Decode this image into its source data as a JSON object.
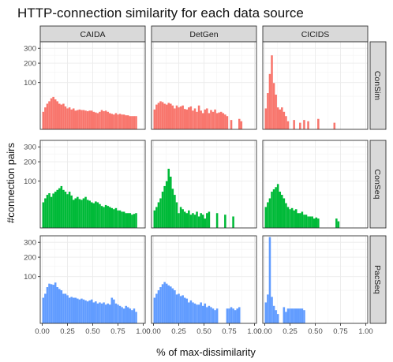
{
  "chart_data": {
    "type": "bar",
    "title": "HTTP-connection similarity for each data source",
    "xlabel": "% of max-dissimilarity",
    "ylabel": "#connection pairs",
    "xlim": [
      -0.02,
      1.02
    ],
    "x_ticks": [
      "0.00",
      "0.25",
      "0.50",
      "0.75",
      "1.00"
    ],
    "y_scale": "sqrt",
    "ylim": [
      0,
      350
    ],
    "y_ticks": [
      "100",
      "200",
      "300"
    ],
    "bin_width": 0.02,
    "grid": true,
    "columns": [
      "CAIDA",
      "DetGen",
      "CICIDS"
    ],
    "rows": [
      {
        "name": "ConSim",
        "color": "#F8766D"
      },
      {
        "name": "ConSeq",
        "color": "#00BA38"
      },
      {
        "name": "PacSeq",
        "color": "#619CFF"
      }
    ],
    "panels": [
      {
        "row": "ConSim",
        "column": "CAIDA",
        "x0": 0.01,
        "counts": [
          14,
          22,
          30,
          36,
          44,
          48,
          41,
          36,
          30,
          28,
          30,
          24,
          20,
          22,
          18,
          20,
          16,
          17,
          18,
          17,
          17,
          16,
          15,
          16,
          16,
          14,
          13,
          12,
          14,
          17,
          15,
          16,
          14,
          12,
          11,
          10,
          12,
          10,
          11,
          10,
          10,
          9,
          9,
          8,
          8,
          8,
          8
        ]
      },
      {
        "row": "ConSim",
        "column": "DetGen",
        "x0": 0.01,
        "counts": [
          18,
          28,
          32,
          36,
          34,
          30,
          28,
          32,
          30,
          26,
          20,
          26,
          22,
          24,
          26,
          19,
          18,
          22,
          24,
          16,
          20,
          14,
          26,
          16,
          12,
          18,
          20,
          12,
          17,
          14,
          18,
          12,
          13,
          14,
          12,
          10,
          8,
          0,
          4,
          0,
          0,
          0,
          5,
          3
        ]
      },
      {
        "row": "ConSim",
        "column": "CICIDS",
        "x0": 0.01,
        "counts": [
          20,
          60,
          140,
          250,
          98,
          55,
          22,
          18,
          22,
          14,
          8,
          3,
          0,
          0,
          4,
          0,
          0,
          2,
          0,
          4,
          0,
          3,
          0,
          0,
          0,
          0,
          5,
          0,
          0,
          0,
          0,
          0,
          0,
          0,
          2
        ]
      },
      {
        "row": "ConSeq",
        "column": "CAIDA",
        "x0": 0.01,
        "counts": [
          30,
          40,
          50,
          55,
          44,
          54,
          60,
          66,
          72,
          80,
          66,
          60,
          52,
          60,
          48,
          36,
          40,
          44,
          38,
          36,
          40,
          44,
          36,
          34,
          30,
          28,
          32,
          30,
          26,
          22,
          20,
          24,
          22,
          20,
          18,
          16,
          18,
          14,
          14,
          12,
          12,
          10,
          10,
          10,
          8,
          9,
          10
        ]
      },
      {
        "row": "ConSeq",
        "column": "DetGen",
        "x0": 0.01,
        "counts": [
          14,
          20,
          30,
          40,
          60,
          80,
          100,
          160,
          120,
          70,
          50,
          30,
          10,
          20,
          16,
          12,
          10,
          14,
          8,
          10,
          8,
          12,
          6,
          10,
          8,
          4,
          10,
          12,
          0,
          0,
          0,
          10,
          0,
          0,
          0,
          8,
          0,
          0,
          0,
          6
        ]
      },
      {
        "row": "ConSeq",
        "column": "CICIDS",
        "x0": 0.01,
        "counts": [
          20,
          30,
          40,
          60,
          68,
          76,
          88,
          60,
          50,
          40,
          28,
          20,
          16,
          18,
          14,
          16,
          10,
          10,
          12,
          8,
          8,
          6,
          6,
          6,
          4,
          5,
          4,
          0,
          0,
          0,
          0,
          0,
          0,
          0,
          0,
          4,
          2
        ]
      },
      {
        "row": "PacSeq",
        "column": "CAIDA",
        "x0": 0.01,
        "counts": [
          30,
          40,
          60,
          72,
          70,
          68,
          76,
          60,
          54,
          50,
          40,
          40,
          36,
          30,
          32,
          30,
          30,
          28,
          26,
          28,
          26,
          24,
          22,
          24,
          26,
          20,
          22,
          18,
          20,
          18,
          20,
          16,
          18,
          16,
          30,
          26,
          18,
          16,
          14,
          12,
          10,
          14,
          12,
          10,
          8,
          10,
          6
        ]
      },
      {
        "row": "PacSeq",
        "column": "DetGen",
        "x0": 0.01,
        "counts": [
          30,
          40,
          50,
          60,
          70,
          78,
          72,
          66,
          62,
          56,
          50,
          38,
          40,
          34,
          36,
          30,
          28,
          20,
          24,
          20,
          18,
          16,
          16,
          20,
          14,
          18,
          12,
          14,
          12,
          10,
          8,
          10,
          0,
          0,
          0,
          0,
          10,
          10,
          12,
          10,
          8,
          10,
          12
        ]
      },
      {
        "row": "PacSeq",
        "column": "CICIDS",
        "x0": 0.01,
        "counts": [
          20,
          38,
          340,
          32,
          14,
          8,
          4,
          0,
          0,
          12,
          6,
          10,
          10,
          10,
          10,
          10,
          10,
          10,
          10,
          8
        ]
      }
    ]
  }
}
